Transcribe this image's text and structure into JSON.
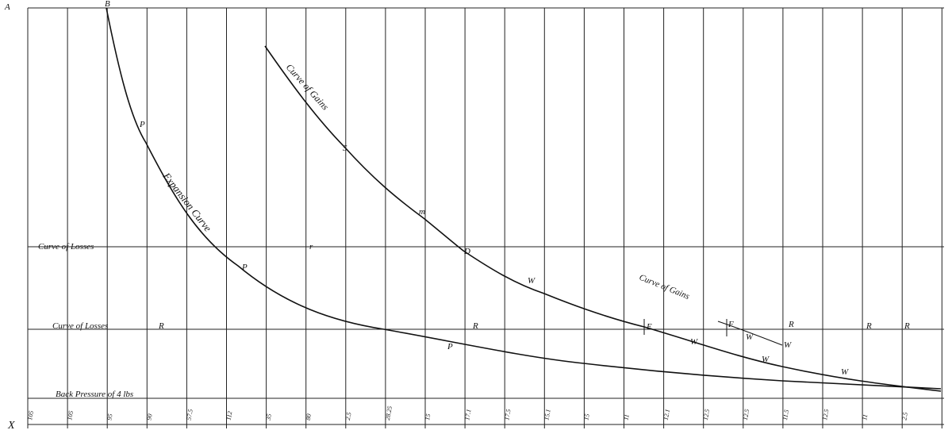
{
  "corners": {
    "a": "A",
    "b": "B",
    "x": "X"
  },
  "curves": {
    "gains": "Curve of Gains",
    "expansion": "Expansion Curve",
    "losses_upper": "Curve of Losses",
    "losses_lower": "Curve of Losses",
    "back_pressure": "Back Pressure of 4 lbs",
    "gains_lower": "Curve of Gains"
  },
  "point_letters": [
    "P",
    "S",
    "m",
    "D",
    "P",
    "W",
    "E",
    "P",
    "W",
    "W",
    "W",
    "W",
    "W",
    "r",
    "R",
    "R",
    "F",
    "R",
    "R",
    "R"
  ],
  "scale_labels": [
    "105",
    "105",
    "95",
    "90",
    "57.5",
    "112",
    "35",
    "80",
    "2.5",
    "28.25",
    "15",
    "17.1",
    "17.5",
    "15.1",
    "15",
    "11",
    "12.1",
    "12.5",
    "12.5",
    "11.5",
    "12.5",
    "11",
    "2.5"
  ]
}
